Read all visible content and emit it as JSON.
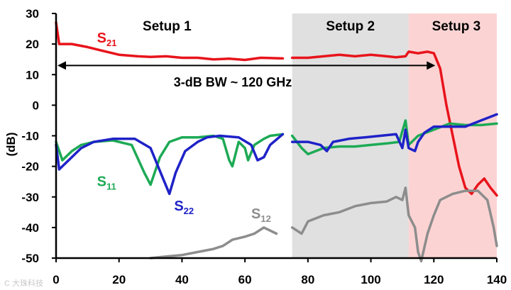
{
  "chart_data": {
    "type": "line",
    "xlim": [
      0,
      140
    ],
    "ylim": [
      -50,
      30
    ],
    "xticks": [
      0,
      20,
      40,
      60,
      80,
      100,
      120,
      140
    ],
    "yticks": [
      30,
      20,
      10,
      0,
      -10,
      -20,
      -30,
      -40,
      -50
    ],
    "ylabel": "(dB)",
    "regions": [
      {
        "label": "Setup 1",
        "x0": 0,
        "x1": 75,
        "color": "#ffffff"
      },
      {
        "label": "Setup 2",
        "x0": 75,
        "x1": 112,
        "color": "#e0e0e0"
      },
      {
        "label": "Setup 3",
        "x0": 112,
        "x1": 140,
        "color": "#fcd3d3"
      }
    ],
    "annotation": {
      "text": "3-dB BW ~ 120 GHz",
      "x0": 0,
      "x1": 120,
      "y": 13
    },
    "series": [
      {
        "name": "S21",
        "label_main": "S",
        "label_sub": "21",
        "color": "#e8141b",
        "label_pos": [
          13,
          20.5
        ],
        "segments": [
          [
            [
              0,
              27
            ],
            [
              1,
              20
            ],
            [
              5,
              20
            ],
            [
              10,
              19
            ],
            [
              14,
              18
            ],
            [
              20,
              16.5
            ],
            [
              26,
              16
            ],
            [
              30,
              15.8
            ],
            [
              35,
              16
            ],
            [
              40,
              15.5
            ],
            [
              45,
              15.5
            ],
            [
              50,
              15
            ],
            [
              55,
              15.2
            ],
            [
              60,
              14.8
            ],
            [
              65,
              15.5
            ],
            [
              72,
              15.3
            ]
          ],
          [
            [
              75,
              15.5
            ],
            [
              80,
              15.5
            ],
            [
              85,
              16
            ],
            [
              90,
              16.5
            ],
            [
              95,
              16
            ],
            [
              100,
              16.5
            ],
            [
              105,
              16
            ],
            [
              108,
              15.7
            ],
            [
              111,
              16
            ],
            [
              112,
              17.5
            ],
            [
              115,
              17
            ],
            [
              118,
              17.5
            ],
            [
              120,
              17
            ],
            [
              122,
              12
            ],
            [
              124,
              0
            ],
            [
              126,
              -10
            ],
            [
              128,
              -20
            ],
            [
              130,
              -27
            ],
            [
              132,
              -29
            ],
            [
              134,
              -26
            ],
            [
              136,
              -24
            ],
            [
              138,
              -27
            ],
            [
              140,
              -29.5
            ]
          ]
        ]
      },
      {
        "name": "S11",
        "label_main": "S",
        "label_sub": "11",
        "color": "#1daa55",
        "label_pos": [
          13,
          -26.5
        ],
        "segments": [
          [
            [
              0,
              -12
            ],
            [
              2,
              -18
            ],
            [
              5,
              -15
            ],
            [
              8,
              -13
            ],
            [
              12,
              -12
            ],
            [
              18,
              -11.5
            ],
            [
              24,
              -13
            ],
            [
              28,
              -22
            ],
            [
              30,
              -26
            ],
            [
              33,
              -17
            ],
            [
              36,
              -12
            ],
            [
              40,
              -10.5
            ],
            [
              45,
              -10.5
            ],
            [
              50,
              -10
            ],
            [
              53,
              -11
            ],
            [
              55,
              -18
            ],
            [
              56,
              -20
            ],
            [
              58,
              -12
            ],
            [
              60,
              -14
            ],
            [
              61,
              -18
            ],
            [
              63,
              -13
            ],
            [
              66,
              -11
            ],
            [
              68,
              -10
            ],
            [
              72,
              -9.5
            ]
          ],
          [
            [
              75,
              -10
            ],
            [
              78,
              -14
            ],
            [
              80,
              -16
            ],
            [
              85,
              -14
            ],
            [
              90,
              -13.5
            ],
            [
              95,
              -13.5
            ],
            [
              100,
              -13
            ],
            [
              105,
              -12.5
            ],
            [
              109,
              -12
            ],
            [
              111,
              -5
            ],
            [
              112,
              -13
            ],
            [
              115,
              -10
            ],
            [
              120,
              -8
            ],
            [
              125,
              -6
            ],
            [
              130,
              -6.5
            ],
            [
              135,
              -6.5
            ],
            [
              140,
              -6
            ]
          ]
        ]
      },
      {
        "name": "S22",
        "label_main": "S",
        "label_sub": "22",
        "color": "#1f22c7",
        "label_pos": [
          37.5,
          -34.5
        ],
        "segments": [
          [
            [
              0,
              -13
            ],
            [
              1,
              -21
            ],
            [
              4,
              -18
            ],
            [
              8,
              -14
            ],
            [
              12,
              -12
            ],
            [
              18,
              -11
            ],
            [
              25,
              -11
            ],
            [
              30,
              -14
            ],
            [
              34,
              -24
            ],
            [
              36,
              -29
            ],
            [
              38,
              -22
            ],
            [
              41,
              -15
            ],
            [
              45,
              -12
            ],
            [
              48,
              -10.5
            ],
            [
              52,
              -10
            ],
            [
              58,
              -10.5
            ],
            [
              62,
              -13
            ],
            [
              64,
              -18
            ],
            [
              66,
              -17
            ],
            [
              68,
              -13
            ],
            [
              72,
              -9.5
            ]
          ],
          [
            [
              75,
              -12
            ],
            [
              80,
              -12
            ],
            [
              84,
              -13
            ],
            [
              86,
              -15
            ],
            [
              88,
              -12
            ],
            [
              93,
              -11
            ],
            [
              98,
              -10.5
            ],
            [
              103,
              -10
            ],
            [
              108,
              -9.5
            ],
            [
              110,
              -14
            ],
            [
              111,
              -8
            ],
            [
              112,
              -14
            ],
            [
              114,
              -15
            ],
            [
              115,
              -12
            ],
            [
              117,
              -9
            ],
            [
              120,
              -7
            ],
            [
              125,
              -7
            ],
            [
              130,
              -7
            ],
            [
              135,
              -5
            ],
            [
              140,
              -3
            ]
          ]
        ]
      },
      {
        "name": "S12",
        "label_main": "S",
        "label_sub": "12",
        "color": "#8d8d8d",
        "label_pos": [
          62,
          -37
        ],
        "segments": [
          [
            [
              30,
              -50
            ],
            [
              35,
              -49.5
            ],
            [
              40,
              -49
            ],
            [
              45,
              -48
            ],
            [
              50,
              -47
            ],
            [
              53,
              -46
            ],
            [
              56,
              -44
            ],
            [
              60,
              -43
            ],
            [
              63,
              -42
            ],
            [
              66,
              -40
            ],
            [
              70,
              -42
            ]
          ],
          [
            [
              75,
              -40
            ],
            [
              78,
              -42
            ],
            [
              80,
              -38
            ],
            [
              85,
              -36
            ],
            [
              90,
              -35
            ],
            [
              95,
              -33
            ],
            [
              100,
              -32
            ],
            [
              105,
              -31.5
            ],
            [
              108,
              -30
            ],
            [
              110,
              -31
            ],
            [
              111,
              -27
            ],
            [
              112,
              -36
            ],
            [
              114,
              -40
            ],
            [
              115,
              -48
            ],
            [
              116,
              -51
            ],
            [
              118,
              -42
            ],
            [
              120,
              -36
            ],
            [
              122,
              -31
            ],
            [
              126,
              -29
            ],
            [
              130,
              -28
            ],
            [
              134,
              -28
            ],
            [
              137,
              -31
            ],
            [
              139,
              -40
            ],
            [
              140,
              -46
            ]
          ]
        ]
      }
    ]
  },
  "watermark": "C 大珠科技"
}
